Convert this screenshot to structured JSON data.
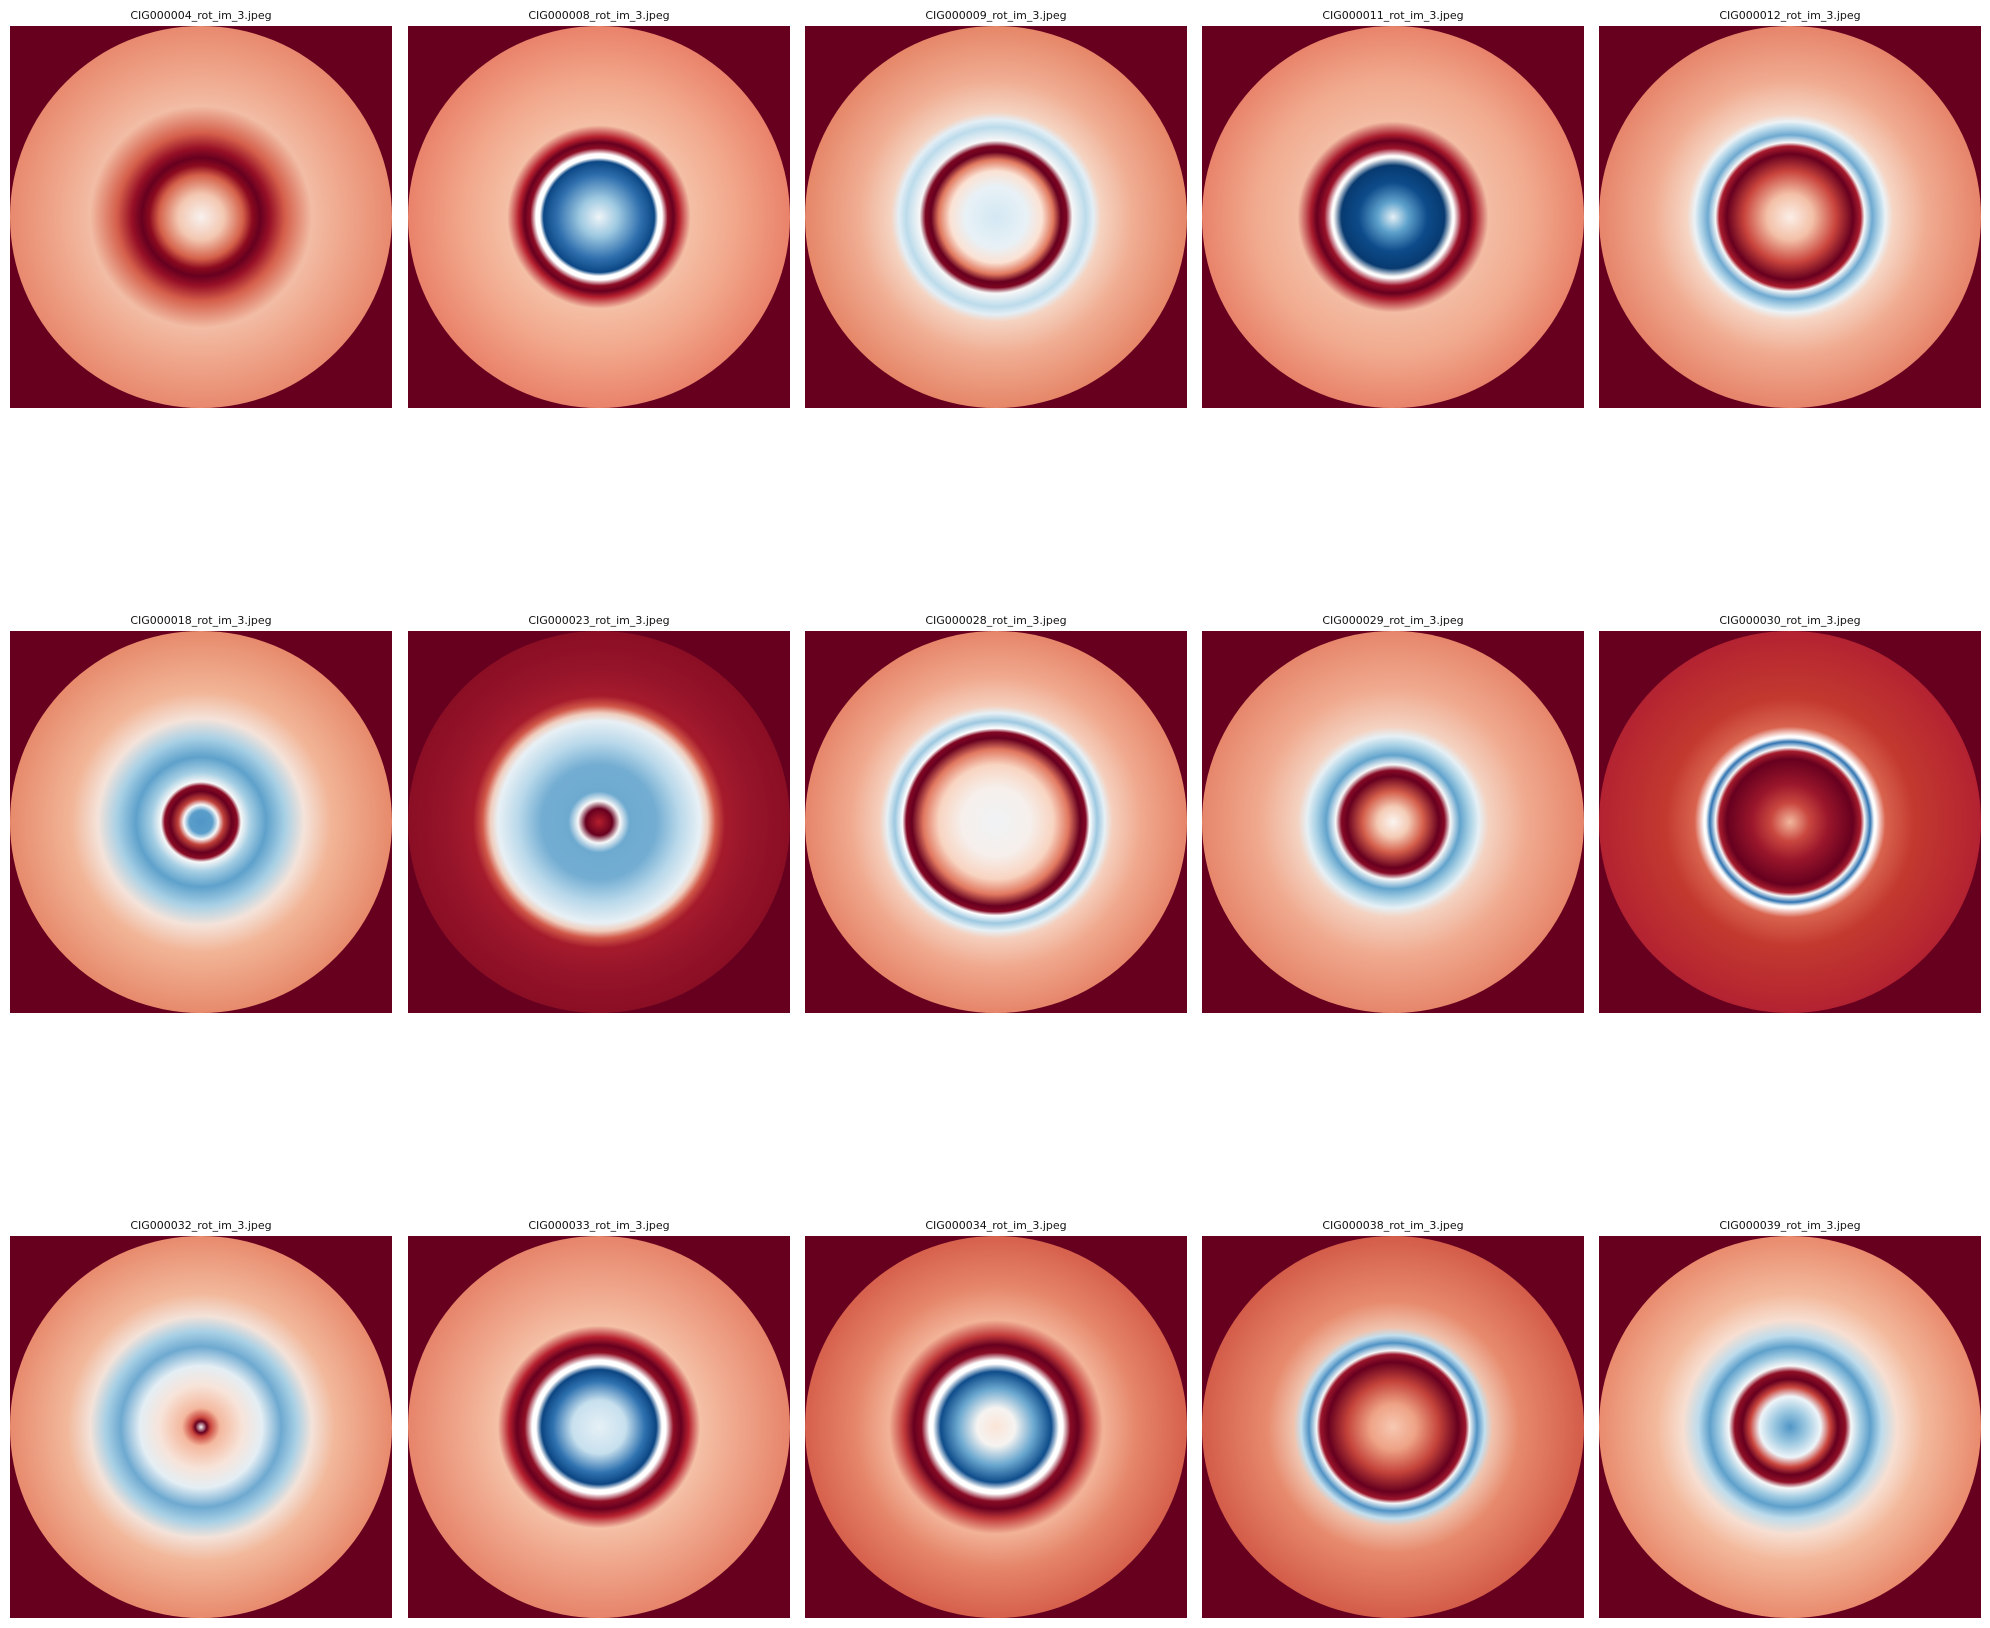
{
  "figure": {
    "panels": [
      {
        "title": "CIG000004_rot_im_3.jpeg",
        "stops": [
          [
            "#f8f1ee",
            0
          ],
          [
            "#f3c7b1",
            12
          ],
          [
            "#d46049",
            22
          ],
          [
            "#8b0a1f",
            27
          ],
          [
            "#67001f",
            31
          ],
          [
            "#960f26",
            36
          ],
          [
            "#d45e4a",
            44
          ],
          [
            "#f2bca4",
            58
          ],
          [
            "#efa78c",
            75
          ],
          [
            "#e8896e",
            100
          ]
        ]
      },
      {
        "title": "CIG000008_rot_im_3.jpeg",
        "stops": [
          [
            "#eef4f8",
            0
          ],
          [
            "#9ec9e1",
            10
          ],
          [
            "#2f6fae",
            22
          ],
          [
            "#0b4784",
            29
          ],
          [
            "#ffffff",
            31
          ],
          [
            "#ffffff",
            33
          ],
          [
            "#8e0d25",
            36
          ],
          [
            "#67001f",
            39
          ],
          [
            "#b51f2e",
            42
          ],
          [
            "#f4bfa5",
            48
          ],
          [
            "#f2a88c",
            70
          ],
          [
            "#e9826a",
            100
          ]
        ]
      },
      {
        "title": "CIG000009_rot_im_3.jpeg",
        "stops": [
          [
            "#d4e8f3",
            0
          ],
          [
            "#e8f1f6",
            16
          ],
          [
            "#fbe2d4",
            24
          ],
          [
            "#e0785e",
            30
          ],
          [
            "#67001f",
            34
          ],
          [
            "#7d0622",
            37
          ],
          [
            "#f7f7f7",
            40
          ],
          [
            "#bcdbeb",
            47
          ],
          [
            "#e3eef5",
            51
          ],
          [
            "#f5d3c1",
            55
          ],
          [
            "#f0ad92",
            72
          ],
          [
            "#e68668",
            100
          ]
        ]
      },
      {
        "title": "CIG000011_rot_im_3.jpeg",
        "stops": [
          [
            "#e5f0f6",
            0
          ],
          [
            "#5fa2cc",
            8
          ],
          [
            "#0d4b8a",
            18
          ],
          [
            "#073a70",
            27
          ],
          [
            "#f5f5f5",
            31
          ],
          [
            "#ffffff",
            32
          ],
          [
            "#9a1229",
            36
          ],
          [
            "#67001f",
            40
          ],
          [
            "#a81b2d",
            43
          ],
          [
            "#f3bca3",
            50
          ],
          [
            "#f1aa8e",
            72
          ],
          [
            "#e8836a",
            100
          ]
        ]
      },
      {
        "title": "CIG000012_rot_im_3.jpeg",
        "stops": [
          [
            "#fbeee7",
            0
          ],
          [
            "#f3c0a7",
            12
          ],
          [
            "#c9443c",
            24
          ],
          [
            "#67001f",
            33
          ],
          [
            "#a81b2d",
            37
          ],
          [
            "#f7f7f7",
            39
          ],
          [
            "#6ea9d0",
            43
          ],
          [
            "#b2d5e8",
            47
          ],
          [
            "#ebf2f6",
            50
          ],
          [
            "#f6d5c4",
            54
          ],
          [
            "#f0ab90",
            72
          ],
          [
            "#e6846a",
            100
          ]
        ]
      },
      {
        "title": "CIG000018_rot_im_3.jpeg",
        "stops": [
          [
            "#4f95c6",
            0
          ],
          [
            "#5b9ecb",
            6
          ],
          [
            "#f7f7f7",
            9
          ],
          [
            "#c1423a",
            12
          ],
          [
            "#67001f",
            16
          ],
          [
            "#8a0b24",
            19
          ],
          [
            "#f7f7f7",
            21
          ],
          [
            "#a6cfe4",
            26
          ],
          [
            "#5ea1cb",
            34
          ],
          [
            "#a8d0e5",
            44
          ],
          [
            "#f4e3da",
            54
          ],
          [
            "#f2b597",
            68
          ],
          [
            "#e78a6c",
            100
          ]
        ]
      },
      {
        "title": "CIG000023_rot_im_3.jpeg",
        "stops": [
          [
            "#b51f2e",
            0
          ],
          [
            "#67001f",
            7
          ],
          [
            "#f7f7f7",
            11
          ],
          [
            "#6eaad0",
            16
          ],
          [
            "#73add2",
            30
          ],
          [
            "#b8d8ea",
            42
          ],
          [
            "#e8f0f5",
            53
          ],
          [
            "#f0cdbd",
            57
          ],
          [
            "#d05748",
            61
          ],
          [
            "#a51b2c",
            66
          ],
          [
            "#96142a",
            80
          ],
          [
            "#8a0e24",
            100
          ]
        ]
      },
      {
        "title": "CIG000028_rot_im_3.jpeg",
        "stops": [
          [
            "#f0f3f5",
            0
          ],
          [
            "#f6efeb",
            18
          ],
          [
            "#f8d4c1",
            30
          ],
          [
            "#e1775f",
            38
          ],
          [
            "#67001f",
            44
          ],
          [
            "#820724",
            47
          ],
          [
            "#ffffff",
            49
          ],
          [
            "#9dc8e0",
            53
          ],
          [
            "#e6f0f5",
            57
          ],
          [
            "#f5cfbd",
            61
          ],
          [
            "#f0a98e",
            76
          ],
          [
            "#e6856a",
            100
          ]
        ]
      },
      {
        "title": "CIG000029_rot_im_3.jpeg",
        "stops": [
          [
            "#fbf4f0",
            0
          ],
          [
            "#f4cbb5",
            8
          ],
          [
            "#d35d4a",
            16
          ],
          [
            "#67001f",
            24
          ],
          [
            "#860925",
            27
          ],
          [
            "#f7f7f7",
            30
          ],
          [
            "#62a3cc",
            35
          ],
          [
            "#a5cfe4",
            40
          ],
          [
            "#e6f0f5",
            45
          ],
          [
            "#f4d2c1",
            50
          ],
          [
            "#f0aa8f",
            70
          ],
          [
            "#e6866b",
            100
          ]
        ]
      },
      {
        "title": "CIG000030_rot_im_3.jpeg",
        "stops": [
          [
            "#f2b79d",
            0
          ],
          [
            "#c9473f",
            10
          ],
          [
            "#9a162b",
            20
          ],
          [
            "#67001f",
            33
          ],
          [
            "#a51b2c",
            37
          ],
          [
            "#f7f7f7",
            39
          ],
          [
            "#2f73b1",
            42
          ],
          [
            "#f4f6f8",
            44
          ],
          [
            "#ffffff",
            45
          ],
          [
            "#d8634e",
            50
          ],
          [
            "#c3392f",
            65
          ],
          [
            "#b32231",
            100
          ]
        ]
      },
      {
        "title": "CIG000032_rot_im_3.jpeg",
        "stops": [
          [
            "#f7f7f7",
            0
          ],
          [
            "#67001f",
            3
          ],
          [
            "#c9443c",
            5
          ],
          [
            "#f4b89e",
            10
          ],
          [
            "#f7e4da",
            22
          ],
          [
            "#e4eef4",
            32
          ],
          [
            "#6ea9d0",
            42
          ],
          [
            "#a8d0e5",
            50
          ],
          [
            "#f3e2d9",
            58
          ],
          [
            "#f2b89b",
            70
          ],
          [
            "#e88a6d",
            100
          ]
        ]
      },
      {
        "title": "CIG000033_rot_im_3.jpeg",
        "stops": [
          [
            "#e6f0f6",
            0
          ],
          [
            "#c7e0ee",
            14
          ],
          [
            "#2f72b0",
            24
          ],
          [
            "#0b4582",
            30
          ],
          [
            "#ffffff",
            33
          ],
          [
            "#ffffff",
            35
          ],
          [
            "#8f0e25",
            39
          ],
          [
            "#67001f",
            43
          ],
          [
            "#b51f2e",
            47
          ],
          [
            "#f4c0a6",
            53
          ],
          [
            "#f0a98e",
            70
          ],
          [
            "#e6846a",
            100
          ]
        ]
      },
      {
        "title": "CIG000034_rot_im_3.jpeg",
        "stops": [
          [
            "#fbe5d8",
            0
          ],
          [
            "#f5f3f1",
            10
          ],
          [
            "#6aa7cf",
            20
          ],
          [
            "#0e4c8b",
            29
          ],
          [
            "#ffffff",
            33
          ],
          [
            "#ffffff",
            35
          ],
          [
            "#880b24",
            39
          ],
          [
            "#67001f",
            43
          ],
          [
            "#c0393a",
            48
          ],
          [
            "#f2b297",
            56
          ],
          [
            "#e58569",
            74
          ],
          [
            "#d6604c",
            100
          ]
        ]
      },
      {
        "title": "CIG000038_rot_im_3.jpeg",
        "stops": [
          [
            "#f7c8b2",
            0
          ],
          [
            "#eea285",
            12
          ],
          [
            "#c4433a",
            24
          ],
          [
            "#67001f",
            34
          ],
          [
            "#9b152b",
            38
          ],
          [
            "#f7f7f7",
            40
          ],
          [
            "#4f92c4",
            44
          ],
          [
            "#c3dfee",
            48
          ],
          [
            "#f0c3ae",
            52
          ],
          [
            "#e78a6d",
            66
          ],
          [
            "#d35c49",
            100
          ]
        ]
      },
      {
        "title": "CIG000039_rot_im_3.jpeg",
        "stops": [
          [
            "#4f95c6",
            0
          ],
          [
            "#a1cbe2",
            9
          ],
          [
            "#eef4f8",
            16
          ],
          [
            "#c9443c",
            21
          ],
          [
            "#67001f",
            25
          ],
          [
            "#8f0e25",
            29
          ],
          [
            "#f7f7f7",
            32
          ],
          [
            "#a1cbe2",
            37
          ],
          [
            "#5ea0cb",
            42
          ],
          [
            "#bedcec",
            48
          ],
          [
            "#f7dfd2",
            56
          ],
          [
            "#f3b99c",
            70
          ],
          [
            "#e98a6d",
            100
          ]
        ]
      }
    ],
    "background_color": "#67001f"
  }
}
